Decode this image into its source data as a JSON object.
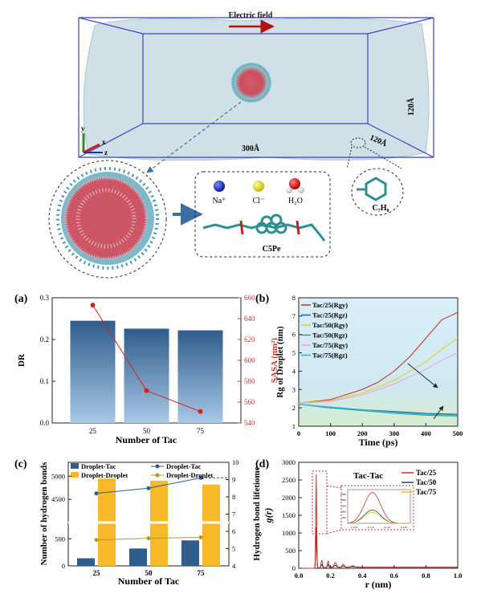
{
  "top": {
    "electric_field": "Electric field",
    "dim_x": "300Å",
    "dim_y": "120Å",
    "dim_z": "120Å",
    "axis_x": "x",
    "axis_y": "y",
    "axis_z": "z",
    "legend_na": "Na⁺",
    "legend_cl": "Cl⁻",
    "legend_h2o": "H₂O",
    "molecule": "C5Pe",
    "toluene": "C₇H₈",
    "colors": {
      "na": "#1b2fbf",
      "cl": "#f0e21a",
      "o": "#d81c1c",
      "h": "#eeeeee",
      "box": "#3a3fc8",
      "arrow": "#b01212"
    }
  },
  "chart_data": [
    {
      "panel": "(a)",
      "type": "bar",
      "categories": [
        "25",
        "50",
        "75"
      ],
      "xlabel": "Number of Tac",
      "ylabel": "DR",
      "ylabel2": "SASA (nm²)",
      "ylim": [
        0,
        0.3
      ],
      "yticks": [
        "0.0",
        "0.1",
        "0.2",
        "0.3"
      ],
      "y2lim": [
        540,
        660
      ],
      "y2ticks": [
        "540",
        "560",
        "580",
        "600",
        "620",
        "640",
        "660"
      ],
      "bar_values": [
        0.245,
        0.226,
        0.222
      ],
      "line_values": [
        653,
        571,
        551
      ],
      "colors": {
        "bar": "#3a6ea5",
        "line": "#d62020"
      }
    },
    {
      "panel": "(b)",
      "type": "line",
      "xlabel": "Time (ps)",
      "ylabel": "Rg of Droplet (nm)",
      "xlim": [
        0,
        500
      ],
      "ylim": [
        1,
        8
      ],
      "xticks": [
        "0",
        "100",
        "200",
        "300",
        "400",
        "500"
      ],
      "yticks": [
        "1",
        "2",
        "3",
        "4",
        "5",
        "6",
        "7",
        "8"
      ],
      "series": [
        {
          "name": "Tac/25(Rgy)",
          "color": "#c0392b",
          "x": [
            0,
            100,
            200,
            250,
            300,
            350,
            400,
            450,
            500
          ],
          "y": [
            2.25,
            2.45,
            3.0,
            3.4,
            4.0,
            4.8,
            5.8,
            6.8,
            7.2
          ]
        },
        {
          "name": "Tac/25(Rgz)",
          "color": "#1a5fa0",
          "x": [
            0,
            100,
            200,
            300,
            400,
            500
          ],
          "y": [
            2.2,
            2.0,
            1.9,
            1.8,
            1.7,
            1.65
          ]
        },
        {
          "name": "Tac/50(Rgy)",
          "color": "#e0cf2e",
          "x": [
            0,
            100,
            200,
            300,
            350,
            400,
            450,
            500
          ],
          "y": [
            2.25,
            2.4,
            2.8,
            3.5,
            4.0,
            4.5,
            5.2,
            5.8
          ]
        },
        {
          "name": "Tac/50(Rgz)",
          "color": "#2aa88c",
          "x": [
            0,
            100,
            200,
            300,
            400,
            500
          ],
          "y": [
            2.2,
            2.0,
            1.85,
            1.7,
            1.6,
            1.55
          ]
        },
        {
          "name": "Tac/75(Rgy)",
          "color": "#e8a7d6",
          "x": [
            0,
            100,
            200,
            300,
            350,
            400,
            450,
            500
          ],
          "y": [
            2.25,
            2.35,
            2.7,
            3.3,
            3.7,
            4.1,
            4.6,
            5.0
          ]
        },
        {
          "name": "Tac/75(Rgz)",
          "color": "#3cb4d8",
          "x": [
            0,
            100,
            200,
            300,
            400,
            500
          ],
          "y": [
            2.2,
            2.05,
            1.9,
            1.75,
            1.65,
            1.6
          ]
        }
      ]
    },
    {
      "panel": "(c)",
      "type": "bar",
      "categories": [
        "25",
        "50",
        "75"
      ],
      "xlabel": "Number of Tac",
      "ylabel": "Number of hydrogen bonds",
      "ylabel2": "Hydrogen bond lifetiome",
      "yticks": [
        "0",
        "500",
        "4500",
        "5000"
      ],
      "y2lim": [
        4,
        10
      ],
      "y2ticks": [
        "4",
        "5",
        "6",
        "7",
        "8",
        "9",
        "10"
      ],
      "series": [
        {
          "name": "Droplet-Tac",
          "kind": "bar",
          "color": "#2f5d8c",
          "values": [
            140,
            320,
            470
          ]
        },
        {
          "name": "Droplet-Droplet",
          "kind": "bar",
          "color": "#f7b82a",
          "values": [
            4950,
            4900,
            4820
          ]
        },
        {
          "name": "Droplet-Tac",
          "kind": "line",
          "color": "#2f5d8c",
          "values": [
            8.2,
            8.5,
            9.1
          ]
        },
        {
          "name": "Droplet-Droplet",
          "kind": "line",
          "color": "#b89a2a",
          "values": [
            5.5,
            5.6,
            5.65
          ]
        }
      ]
    },
    {
      "panel": "(d)",
      "type": "line",
      "title": "Tac-Tac",
      "xlabel": "r (nm)",
      "ylabel": "g(r)",
      "xlim": [
        0,
        1.0
      ],
      "ylim": [
        0,
        3000
      ],
      "xticks": [
        "0.0",
        "0.2",
        "0.4",
        "0.6",
        "0.8",
        "1.0"
      ],
      "yticks": [
        "0",
        "500",
        "1000",
        "1500",
        "2000",
        "2500",
        "3000"
      ],
      "inset_xticks": [
        "0.105",
        "0.110",
        "0.115",
        "0.120"
      ],
      "inset_yticks": [
        "500",
        "1000",
        "1500",
        "2000",
        "2500"
      ],
      "series": [
        {
          "name": "Tac/25",
          "color": "#c0392b",
          "peak": 2650
        },
        {
          "name": "Tac/50",
          "color": "#1f3a8c",
          "peak": 1150
        },
        {
          "name": "Tac/75",
          "color": "#e8c21a",
          "peak": 950
        }
      ]
    }
  ]
}
